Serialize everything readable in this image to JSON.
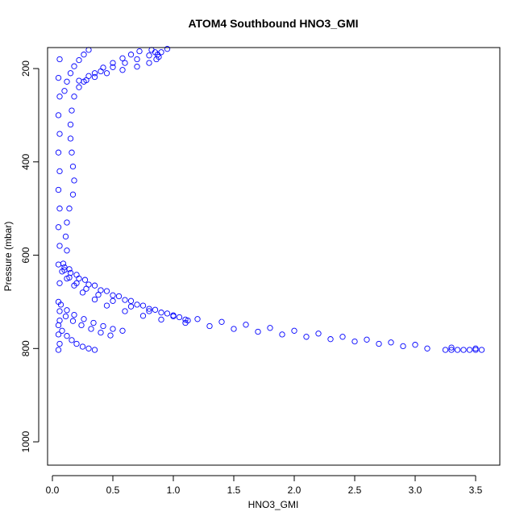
{
  "chart_data": {
    "type": "scatter",
    "title": "ATOM4 Southbound HNO3_GMI",
    "xlabel": "HNO3_GMI",
    "ylabel": "Pressure (mbar)",
    "xlim": [
      -0.04,
      3.7
    ],
    "ylim": [
      1050,
      155
    ],
    "y_reversed": true,
    "x_ticks": [
      0.0,
      0.5,
      1.0,
      1.5,
      2.0,
      2.5,
      3.0,
      3.5
    ],
    "x_tick_labels": [
      "0.0",
      "0.5",
      "1.0",
      "1.5",
      "2.0",
      "2.5",
      "3.0",
      "3.5"
    ],
    "y_ticks": [
      200,
      400,
      600,
      800,
      1000
    ],
    "y_tick_labels": [
      "200",
      "400",
      "600",
      "800",
      "1000"
    ],
    "grid": false,
    "marker": "open-circle",
    "point_color": "#0000ff",
    "series": [
      {
        "points": [
          [
            3.55,
            803
          ],
          [
            3.5,
            803
          ],
          [
            3.45,
            803
          ],
          [
            3.4,
            803
          ],
          [
            3.35,
            803
          ],
          [
            3.3,
            803
          ],
          [
            3.25,
            803
          ],
          [
            3.1,
            800
          ],
          [
            2.9,
            795
          ],
          [
            2.7,
            790
          ],
          [
            2.5,
            785
          ],
          [
            2.3,
            780
          ],
          [
            2.1,
            775
          ],
          [
            1.9,
            770
          ],
          [
            1.7,
            764
          ],
          [
            1.5,
            758
          ],
          [
            1.3,
            752
          ],
          [
            1.1,
            745
          ],
          [
            0.9,
            738
          ],
          [
            0.75,
            730
          ],
          [
            0.6,
            720
          ],
          [
            0.45,
            708
          ],
          [
            0.35,
            695
          ],
          [
            0.25,
            680
          ],
          [
            0.18,
            665
          ],
          [
            0.12,
            650
          ],
          [
            0.08,
            635
          ]
        ]
      },
      {
        "points": [
          [
            3.5,
            800
          ],
          [
            3.3,
            798
          ],
          [
            3.0,
            792
          ],
          [
            2.8,
            787
          ],
          [
            2.6,
            781
          ],
          [
            2.4,
            775
          ],
          [
            2.2,
            768
          ],
          [
            2.0,
            762
          ],
          [
            1.8,
            756
          ],
          [
            1.6,
            749
          ],
          [
            1.4,
            743
          ],
          [
            1.2,
            737
          ],
          [
            1.0,
            729
          ],
          [
            0.8,
            720
          ],
          [
            0.65,
            710
          ],
          [
            0.5,
            698
          ],
          [
            0.38,
            685
          ],
          [
            0.28,
            672
          ],
          [
            0.2,
            660
          ],
          [
            0.14,
            648
          ],
          [
            0.1,
            632
          ]
        ]
      },
      {
        "points": [
          [
            1.12,
            740
          ],
          [
            1.05,
            733
          ],
          [
            0.95,
            725
          ],
          [
            0.85,
            717
          ],
          [
            0.75,
            708
          ],
          [
            0.65,
            698
          ],
          [
            0.55,
            688
          ],
          [
            0.45,
            677
          ],
          [
            0.35,
            665
          ],
          [
            0.27,
            653
          ],
          [
            0.2,
            642
          ],
          [
            0.14,
            630
          ],
          [
            0.09,
            618
          ]
        ]
      },
      {
        "points": [
          [
            1.1,
            738
          ],
          [
            1.0,
            731
          ],
          [
            0.9,
            723
          ],
          [
            0.8,
            715
          ],
          [
            0.7,
            706
          ],
          [
            0.6,
            696
          ],
          [
            0.5,
            686
          ],
          [
            0.4,
            675
          ],
          [
            0.3,
            663
          ],
          [
            0.22,
            650
          ],
          [
            0.15,
            638
          ],
          [
            0.1,
            626
          ]
        ]
      },
      {
        "points": [
          [
            0.58,
            762
          ],
          [
            0.5,
            758
          ],
          [
            0.42,
            752
          ],
          [
            0.34,
            745
          ],
          [
            0.26,
            737
          ],
          [
            0.18,
            728
          ],
          [
            0.12,
            718
          ],
          [
            0.07,
            706
          ]
        ]
      },
      {
        "points": [
          [
            0.35,
            803
          ],
          [
            0.3,
            800
          ],
          [
            0.25,
            796
          ],
          [
            0.2,
            790
          ],
          [
            0.16,
            782
          ],
          [
            0.12,
            773
          ],
          [
            0.08,
            762
          ],
          [
            0.05,
            750
          ]
        ]
      },
      {
        "points": [
          [
            0.48,
            772
          ],
          [
            0.4,
            766
          ],
          [
            0.32,
            758
          ],
          [
            0.24,
            750
          ],
          [
            0.17,
            741
          ],
          [
            0.11,
            731
          ],
          [
            0.06,
            720
          ]
        ]
      },
      {
        "points": [
          [
            0.05,
            803
          ],
          [
            0.06,
            790
          ],
          [
            0.05,
            770
          ],
          [
            0.06,
            740
          ],
          [
            0.05,
            700
          ],
          [
            0.06,
            660
          ],
          [
            0.05,
            620
          ],
          [
            0.06,
            580
          ],
          [
            0.05,
            540
          ],
          [
            0.06,
            500
          ],
          [
            0.05,
            460
          ],
          [
            0.06,
            420
          ],
          [
            0.05,
            380
          ],
          [
            0.06,
            340
          ],
          [
            0.05,
            300
          ],
          [
            0.06,
            260
          ],
          [
            0.05,
            220
          ],
          [
            0.06,
            180
          ]
        ]
      },
      {
        "points": [
          [
            0.12,
            590
          ],
          [
            0.11,
            560
          ],
          [
            0.12,
            530
          ],
          [
            0.14,
            500
          ],
          [
            0.17,
            470
          ],
          [
            0.18,
            440
          ],
          [
            0.17,
            410
          ],
          [
            0.16,
            380
          ],
          [
            0.15,
            350
          ],
          [
            0.15,
            320
          ],
          [
            0.16,
            290
          ],
          [
            0.18,
            260
          ],
          [
            0.22,
            240
          ],
          [
            0.28,
            225
          ],
          [
            0.35,
            210
          ],
          [
            0.42,
            198
          ],
          [
            0.5,
            188
          ],
          [
            0.58,
            178
          ],
          [
            0.65,
            170
          ],
          [
            0.72,
            163
          ]
        ]
      },
      {
        "points": [
          [
            0.82,
            160
          ],
          [
            0.85,
            165
          ],
          [
            0.87,
            170
          ],
          [
            0.88,
            175
          ],
          [
            0.86,
            180
          ],
          [
            0.8,
            188
          ],
          [
            0.7,
            196
          ],
          [
            0.58,
            203
          ],
          [
            0.45,
            210
          ],
          [
            0.35,
            218
          ],
          [
            0.26,
            228
          ]
        ]
      },
      {
        "points": [
          [
            0.95,
            158
          ],
          [
            0.9,
            165
          ],
          [
            0.8,
            172
          ],
          [
            0.7,
            180
          ],
          [
            0.6,
            188
          ],
          [
            0.5,
            197
          ],
          [
            0.4,
            206
          ],
          [
            0.3,
            216
          ],
          [
            0.22,
            226
          ]
        ]
      },
      {
        "points": [
          [
            0.3,
            160
          ],
          [
            0.26,
            170
          ],
          [
            0.22,
            182
          ],
          [
            0.18,
            195
          ],
          [
            0.15,
            210
          ],
          [
            0.12,
            228
          ],
          [
            0.1,
            248
          ]
        ]
      }
    ]
  }
}
